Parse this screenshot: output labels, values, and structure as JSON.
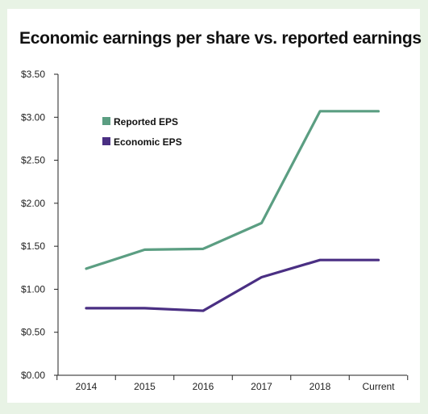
{
  "chart_data": {
    "type": "line",
    "title": "Economic earnings per share vs. reported earnings",
    "categories": [
      "2014",
      "2015",
      "2016",
      "2017",
      "2018",
      "Current"
    ],
    "series": [
      {
        "name": "Reported EPS",
        "color": "#5b9e82",
        "values": [
          1.24,
          1.46,
          1.47,
          1.77,
          3.07,
          3.07
        ]
      },
      {
        "name": "Economic EPS",
        "color": "#4a2f83",
        "values": [
          0.78,
          0.78,
          0.75,
          1.14,
          1.34,
          1.34
        ]
      }
    ],
    "yticks": [
      "$0.00",
      "$0.50",
      "$1.00",
      "$1.50",
      "$2.00",
      "$2.50",
      "$3.00",
      "$3.50"
    ],
    "ylim": [
      0,
      3.5
    ],
    "xlabel": "",
    "ylabel": "",
    "grid": false,
    "legend": "top-left"
  }
}
